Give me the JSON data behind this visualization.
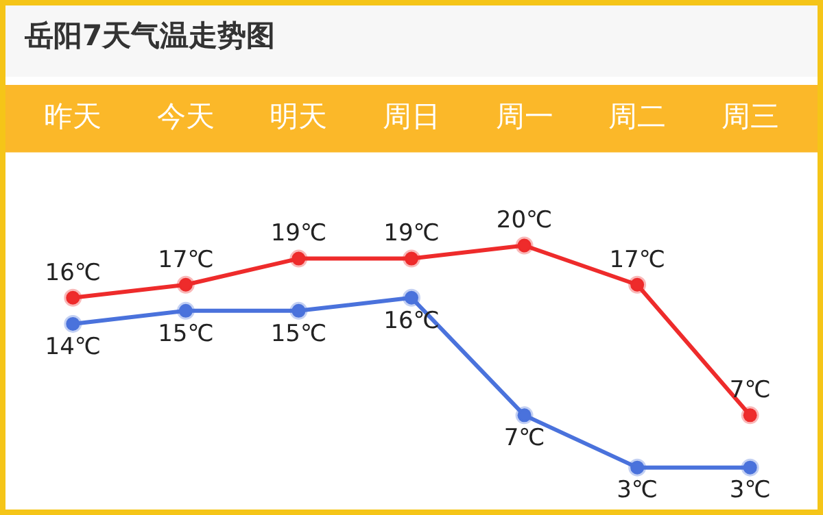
{
  "chart_data": {
    "type": "line",
    "title": "岳阳7天气温走势图",
    "categories": [
      "昨天",
      "今天",
      "明天",
      "周日",
      "周一",
      "周二",
      "周三"
    ],
    "series": [
      {
        "color": "#ee2b2b",
        "values": [
          16,
          17,
          19,
          19,
          20,
          17,
          7
        ],
        "value_labels": [
          "16℃",
          "17℃",
          "19℃",
          "19℃",
          "20℃",
          "17℃",
          "7℃"
        ]
      },
      {
        "color": "#4a72dc",
        "values": [
          14,
          15,
          15,
          16,
          7,
          3,
          3
        ],
        "value_labels": [
          "14℃",
          "15℃",
          "15℃",
          "16℃",
          "7℃",
          "3℃",
          "3℃"
        ]
      }
    ],
    "marker": "circle",
    "legend": false,
    "grid": false
  }
}
